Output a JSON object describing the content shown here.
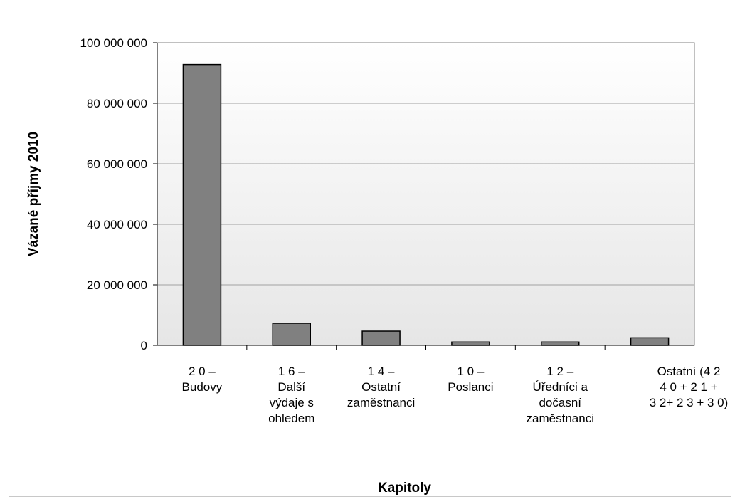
{
  "chart_data": {
    "type": "bar",
    "title": "",
    "xlabel": "Kapitoly",
    "ylabel": "Vázané příjmy 2010",
    "ylim": [
      0,
      100000000
    ],
    "yticks": [
      "0",
      "20 000 000",
      "40 000 000",
      "60 000 000",
      "80 000 000",
      "100 000 000"
    ],
    "categories": [
      "2 0 –\nBudovy",
      "1 6 –\nDalší\nvýdaje s\nohledem",
      "1 4 –\nOstatní\nzaměstnanci",
      "1 0 –\nPoslanci",
      "1 2 –\nÚředníci a\ndočasní\nzaměstnanci",
      "Ostatní (4 2\n4 0 + 2 1 +\n3 2+ 2 3 + 3 0)"
    ],
    "values": [
      92800000,
      7300000,
      4700000,
      1100000,
      1100000,
      2500000
    ],
    "grid": true,
    "legend": "none",
    "colors": {
      "bar": "#808080",
      "bar_stroke": "#000000",
      "plot_bg_top": "#ffffff",
      "plot_bg_bottom": "#e9e9e9",
      "grid": "#a0a0a0"
    }
  }
}
